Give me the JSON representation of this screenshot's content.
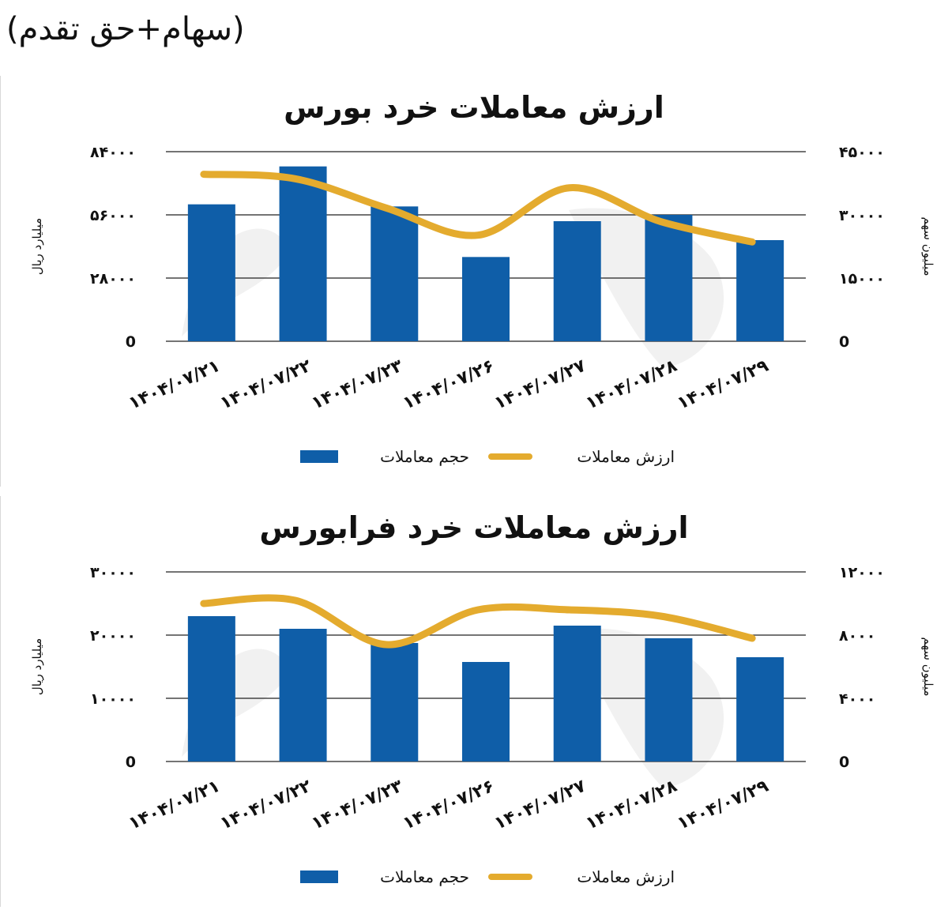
{
  "header": {
    "text": "(سهام+حق تقدم)"
  },
  "colors": {
    "bar": "#0f5ea8",
    "line": "#e4ab2e",
    "grid": "#222222"
  },
  "chart_data": [
    {
      "type": "bar",
      "title": "ارزش معاملات خرد بورس",
      "categories": [
        "۱۴۰۴/۰۷/۲۱",
        "۱۴۰۴/۰۷/۲۲",
        "۱۴۰۴/۰۷/۲۳",
        "۱۴۰۴/۰۷/۲۶",
        "۱۴۰۴/۰۷/۲۷",
        "۱۴۰۴/۰۷/۲۸",
        "۱۴۰۴/۰۷/۲۹"
      ],
      "ylabel": "میلیارد ریال",
      "y2label": "میلیون سهم",
      "ylim": [
        0,
        84000
      ],
      "y2lim": [
        0,
        45000
      ],
      "yticks": [
        0,
        28000,
        56000,
        84000
      ],
      "ytick_labels": [
        "0",
        "۲۸۰۰۰",
        "۵۶۰۰۰",
        "۸۴۰۰۰"
      ],
      "y2ticks": [
        0,
        15000,
        30000,
        45000
      ],
      "y2tick_labels": [
        "0",
        "۱۵۰۰۰",
        "۳۰۰۰۰",
        "۴۵۰۰۰"
      ],
      "series": [
        {
          "name": "حجم معاملات",
          "type": "bar",
          "axis": "right",
          "values": [
            32500,
            41500,
            32000,
            20000,
            28500,
            30000,
            24000
          ]
        },
        {
          "name": "ارزش معاملات",
          "type": "line",
          "axis": "left",
          "values": [
            74000,
            72000,
            59000,
            47000,
            68000,
            53000,
            44000
          ]
        }
      ],
      "legend": "bottom-center",
      "grid": true
    },
    {
      "type": "bar",
      "title": "ارزش معاملات خرد فرابورس",
      "categories": [
        "۱۴۰۴/۰۷/۲۱",
        "۱۴۰۴/۰۷/۲۲",
        "۱۴۰۴/۰۷/۲۳",
        "۱۴۰۴/۰۷/۲۶",
        "۱۴۰۴/۰۷/۲۷",
        "۱۴۰۴/۰۷/۲۸",
        "۱۴۰۴/۰۷/۲۹"
      ],
      "ylabel": "میلیارد ریال",
      "y2label": "میلیون سهم",
      "ylim": [
        0,
        30000
      ],
      "y2lim": [
        0,
        12000
      ],
      "yticks": [
        0,
        10000,
        20000,
        30000
      ],
      "ytick_labels": [
        "0",
        "۱۰۰۰۰",
        "۲۰۰۰۰",
        "۳۰۰۰۰"
      ],
      "y2ticks": [
        0,
        4000,
        8000,
        12000
      ],
      "y2tick_labels": [
        "0",
        "۴۰۰۰",
        "۸۰۰۰",
        "۱۲۰۰۰"
      ],
      "series": [
        {
          "name": "حجم معاملات",
          "type": "bar",
          "axis": "right",
          "values": [
            9200,
            8400,
            7500,
            6300,
            8600,
            7800,
            6600
          ]
        },
        {
          "name": "ارزش معاملات",
          "type": "line",
          "axis": "left",
          "values": [
            25000,
            25500,
            18500,
            24000,
            24000,
            23000,
            19500
          ]
        }
      ],
      "legend": "bottom-center",
      "grid": true
    }
  ]
}
